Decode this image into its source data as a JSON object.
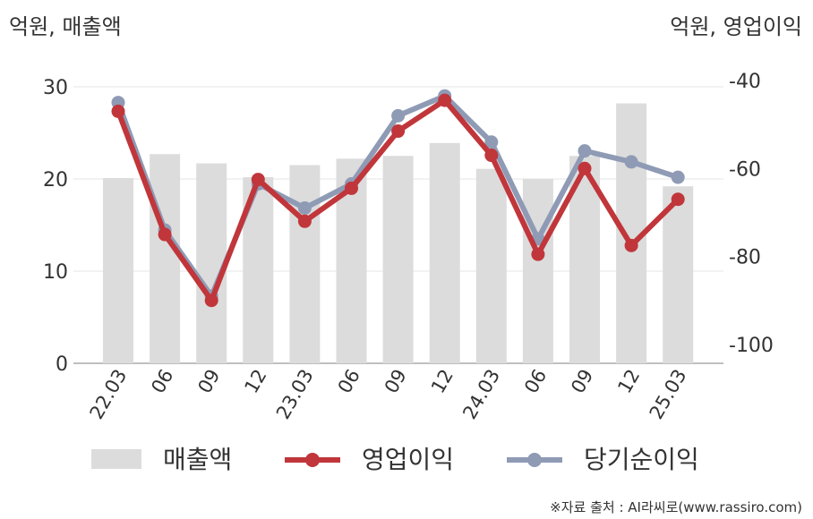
{
  "chart_data": {
    "type": "bar+line",
    "left_axis_label": "억원, 매출액",
    "right_axis_label": "억원, 영업이익",
    "categories": [
      "22.03",
      "06",
      "09",
      "12",
      "23.03",
      "06",
      "09",
      "12",
      "24.03",
      "06",
      "09",
      "12",
      "25.03"
    ],
    "y_left": {
      "min": 0,
      "max": 30,
      "ticks": [
        0,
        10,
        20,
        30
      ]
    },
    "y_right": {
      "min": -103,
      "max": -40,
      "ticks": [
        -40,
        -60,
        -80,
        -100
      ]
    },
    "series": [
      {
        "name": "매출액",
        "type": "bar",
        "axis": "left",
        "color": "#dcdcdc",
        "values": [
          20.1,
          22.7,
          21.7,
          20.2,
          21.5,
          22.2,
          22.5,
          23.9,
          21.1,
          20.0,
          22.5,
          28.2,
          19.2
        ]
      },
      {
        "name": "영업이익",
        "type": "line",
        "axis": "right",
        "color": "#c0363a",
        "values": [
          -47,
          -75,
          -90,
          -62.5,
          -72,
          -64.5,
          -51.5,
          -44.5,
          -57,
          -79.5,
          -60,
          -77.5,
          -67
        ]
      },
      {
        "name": "당기순이익",
        "type": "line",
        "axis": "right",
        "color": "#8f9bb5",
        "values": [
          -45,
          -74,
          -89,
          -63.5,
          -69,
          -63.5,
          -48,
          -43.5,
          -54,
          -76,
          -56,
          -58.5,
          -62
        ]
      }
    ],
    "grid": true,
    "legend_position": "bottom"
  },
  "source_text": "※자료 출처 : AI라씨로(www.rassiro.com)"
}
